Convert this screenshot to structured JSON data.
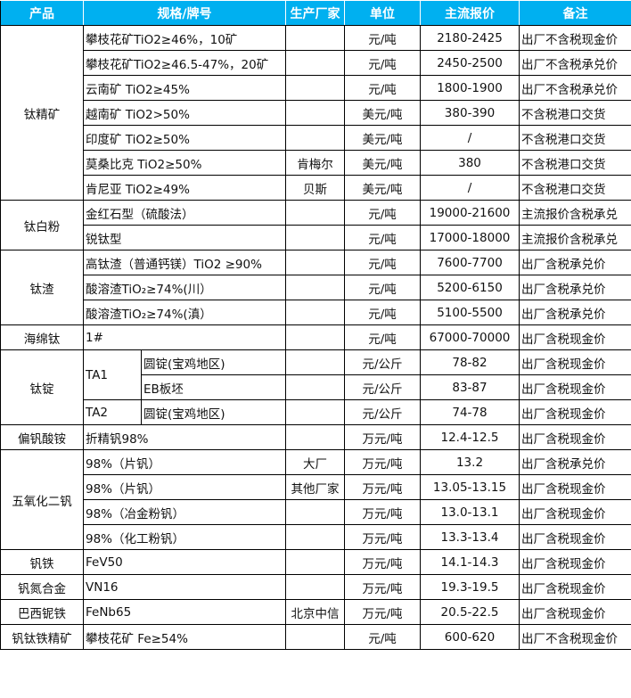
{
  "headers": [
    "产品",
    "规格/牌号",
    "生产厂家",
    "单位",
    "主流报价",
    "备注"
  ],
  "accent": "#00b0f0",
  "groups": [
    {
      "product": "钛精矿",
      "rows": [
        {
          "spec": "攀枝花矿TiO2≥46%，10矿",
          "maker": "",
          "unit": "元/吨",
          "price": "2180-2425",
          "note": "出厂不含税现金价"
        },
        {
          "spec": "攀枝花矿TiO2≥46.5-47%，20矿",
          "maker": "",
          "unit": "元/吨",
          "price": "2450-2500",
          "note": "出厂不含税承兑价"
        },
        {
          "spec": "云南矿 TiO2≥45%",
          "maker": "",
          "unit": "元/吨",
          "price": "1800-1900",
          "note": "出厂不含税承兑价"
        },
        {
          "spec": "越南矿 TiO2>50%",
          "maker": "",
          "unit": "美元/吨",
          "price": "380-390",
          "note": "不含税港口交货"
        },
        {
          "spec": "印度矿 TiO2≥50%",
          "maker": "",
          "unit": "美元/吨",
          "price": "/",
          "note": "不含税港口交货"
        },
        {
          "spec": "莫桑比克 TiO2≥50%",
          "maker": "肯梅尔",
          "unit": "美元/吨",
          "price": "380",
          "note": "不含税港口交货"
        },
        {
          "spec": "肯尼亚 TiO2≥49%",
          "maker": "贝斯",
          "unit": "美元/吨",
          "price": "/",
          "note": "不含税港口交货"
        }
      ]
    },
    {
      "product": "钛白粉",
      "rows": [
        {
          "spec": "金红石型（硫酸法）",
          "maker": "",
          "unit": "元/吨",
          "price": "19000-21600",
          "note": "主流报价含税承兑"
        },
        {
          "spec": "锐钛型",
          "maker": "",
          "unit": "元/吨",
          "price": "17000-18000",
          "note": "主流报价含税承兑"
        }
      ]
    },
    {
      "product": "钛渣",
      "rows": [
        {
          "spec": "高钛渣（普通钙镁）TiO2 ≥90%",
          "maker": "",
          "unit": "元/吨",
          "price": "7600-7700",
          "note": "出厂含税承兑价"
        },
        {
          "spec": "酸溶渣TiO₂≥74%(川）",
          "maker": "",
          "unit": "元/吨",
          "price": "5200-6150",
          "note": "出厂含税承兑价"
        },
        {
          "spec": "酸溶渣TiO₂≥74%(滇）",
          "maker": "",
          "unit": "元/吨",
          "price": "5100-5500",
          "note": "出厂含税承兑价"
        }
      ]
    },
    {
      "product": "海绵钛",
      "rows": [
        {
          "spec": "1#",
          "maker": "",
          "unit": "元/吨",
          "price": "67000-70000",
          "note": "出厂含税现金价"
        }
      ]
    },
    {
      "product": "钛锭",
      "split": true,
      "rows": [
        {
          "grade": "TA1",
          "spec": "圆锭(宝鸡地区)",
          "maker": "",
          "unit": "元/公斤",
          "price": "78-82",
          "note": "出厂含税现金价"
        },
        {
          "grade": null,
          "spec": "EB板坯",
          "maker": "",
          "unit": "元/公斤",
          "price": "83-87",
          "note": "出厂含税现金价"
        },
        {
          "grade": "TA2",
          "spec": "圆锭(宝鸡地区)",
          "maker": "",
          "unit": "元/公斤",
          "price": "74-78",
          "note": "出厂含税现金价"
        }
      ]
    },
    {
      "product": "偏钒酸铵",
      "rows": [
        {
          "spec": "折精钒98%",
          "maker": "",
          "unit": "万元/吨",
          "price": "12.4-12.5",
          "note": "出厂含税现金价"
        }
      ]
    },
    {
      "product": "五氧化二钒",
      "rows": [
        {
          "spec": "98%（片钒）",
          "maker": "大厂",
          "unit": "万元/吨",
          "price": "13.2",
          "note": "出厂含税承兑价"
        },
        {
          "spec": "98%（片钒）",
          "maker": "其他厂家",
          "unit": "万元/吨",
          "price": "13.05-13.15",
          "note": "出厂含税现金价"
        },
        {
          "spec": "98%（冶金粉钒）",
          "maker": "",
          "unit": "万元/吨",
          "price": "13.0-13.1",
          "note": "出厂含税现金价"
        },
        {
          "spec": "98%（化工粉钒）",
          "maker": "",
          "unit": "万元/吨",
          "price": "13.3-13.4",
          "note": "出厂含税现金价"
        }
      ]
    },
    {
      "product": "钒铁",
      "rows": [
        {
          "spec": "FeV50",
          "maker": "",
          "unit": "万元/吨",
          "price": "14.1-14.3",
          "note": "出厂含税现金价"
        }
      ]
    },
    {
      "product": "钒氮合金",
      "rows": [
        {
          "spec": "VN16",
          "maker": "",
          "unit": "万元/吨",
          "price": "19.3-19.5",
          "note": "出厂含税现金价"
        }
      ]
    },
    {
      "product": "巴西铌铁",
      "rows": [
        {
          "spec": "FeNb65",
          "maker": "北京中信",
          "unit": "万元/吨",
          "price": "20.5-22.5",
          "note": "出厂含税现金价"
        }
      ]
    },
    {
      "product": "钒钛铁精矿",
      "rows": [
        {
          "spec": "攀枝花矿 Fe≥54%",
          "maker": "",
          "unit": "元/吨",
          "price": "600-620",
          "note": "出厂不含税现金价"
        }
      ]
    }
  ]
}
